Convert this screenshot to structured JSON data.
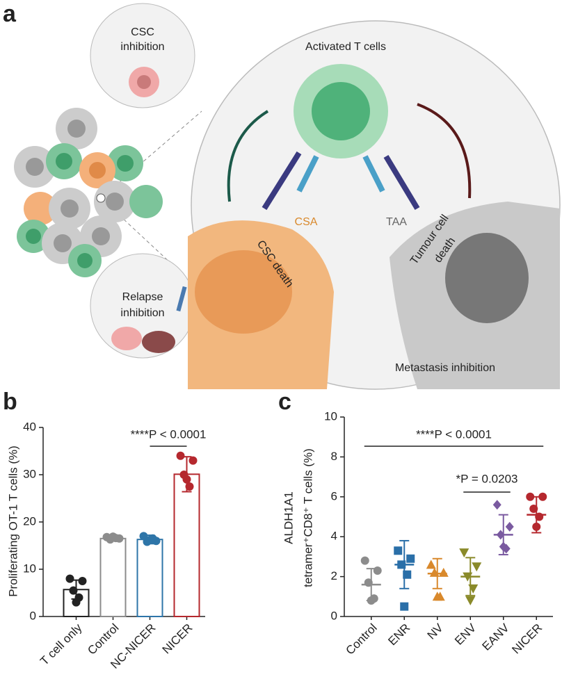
{
  "panel_a": {
    "letter": "a",
    "csc_inhibition": [
      "CSC",
      "inhibition"
    ],
    "activated_t_cells": "Activated T cells",
    "relapse_inhibition": [
      "Relapse",
      "inhibition"
    ],
    "csa": "CSA",
    "taa": "TAA",
    "csc_death": "CSC death",
    "tumour_cell_death": [
      "Tumour cell",
      "death"
    ],
    "metastasis_inhibition": "Metastasis inhibition"
  },
  "chart_data": [
    {
      "type": "bar",
      "letter": "b",
      "y_label": "Proliferating OT-1 T cells (%)",
      "annotation": "****P < 0.0001",
      "categories": [
        "T cell only",
        "Control",
        "NC-NICER",
        "NICER"
      ],
      "values": [
        5.7,
        16.5,
        16.3,
        30.1
      ],
      "errors": [
        2.0,
        0.4,
        0.9,
        3.7
      ],
      "points": [
        [
          8,
          7.5,
          5.5,
          4,
          3
        ],
        [
          16.8,
          16.5,
          16.3,
          16.6,
          16.9
        ],
        [
          17,
          16,
          15.8,
          16.5,
          16.2
        ],
        [
          34,
          33,
          30,
          27.5,
          29
        ]
      ],
      "colors": [
        "#222222",
        "#8c8c8c",
        "#2e75a8",
        "#b5282e"
      ],
      "ylim": [
        0,
        40
      ],
      "yticks": [
        0,
        10,
        20,
        30,
        40
      ]
    },
    {
      "type": "dot",
      "letter": "c",
      "y_label": [
        "ALDH1A1",
        "tetramer⁺CD8⁺ T cells (%)"
      ],
      "annotations": [
        "****P < 0.0001",
        "*P = 0.0203"
      ],
      "categories": [
        "Control",
        "ENR",
        "NV",
        "ENV",
        "EANV",
        "NICER"
      ],
      "values": [
        1.6,
        2.6,
        2.15,
        2.0,
        4.1,
        5.1
      ],
      "errors": [
        0.8,
        1.2,
        0.75,
        0.95,
        1.0,
        0.9
      ],
      "points": [
        [
          2.8,
          2.3,
          1.7,
          0.9,
          0.8
        ],
        [
          3.3,
          2.9,
          2.6,
          2.1,
          0.5
        ],
        [
          2.6,
          2.2,
          2.2,
          1.0,
          1.0
        ],
        [
          3.2,
          2.5,
          2.0,
          1.4,
          0.8
        ],
        [
          5.6,
          4.5,
          4.1,
          3.4,
          3.5
        ],
        [
          6.0,
          6.0,
          5.4,
          5.0,
          4.5
        ]
      ],
      "colors": [
        "#8c8c8c",
        "#2a6fa8",
        "#d9892c",
        "#8a8a2a",
        "#7a5aa0",
        "#b5282e"
      ],
      "markers": [
        "circle",
        "square",
        "triangle-up",
        "triangle-down",
        "diamond",
        "circle"
      ],
      "ylim": [
        0,
        10
      ],
      "yticks": [
        0,
        2,
        4,
        6,
        8,
        10
      ]
    }
  ]
}
